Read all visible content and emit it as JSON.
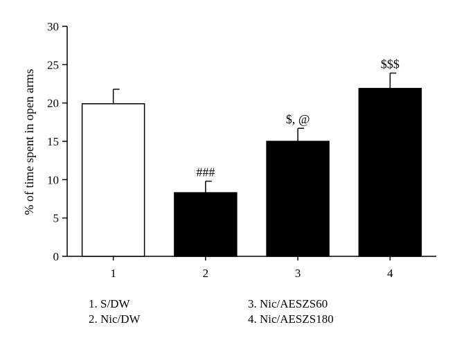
{
  "chart_data": {
    "type": "bar",
    "categories": [
      "1",
      "2",
      "3",
      "4"
    ],
    "values": [
      19.9,
      8.3,
      15.0,
      21.9
    ],
    "errors": [
      1.9,
      1.5,
      1.7,
      2.0
    ],
    "fills": [
      "#ffffff",
      "#000000",
      "#000000",
      "#000000"
    ],
    "annotations": [
      "",
      "###",
      "$, @",
      "$$$"
    ],
    "ylabel": "% of time spent in open arms",
    "xlabel": "",
    "title": "",
    "ylim": [
      0,
      30
    ],
    "yticks": [
      0,
      5,
      10,
      15,
      20,
      25,
      30
    ],
    "grid": false
  },
  "legend": {
    "items": [
      "1. S/DW",
      "2. Nic/DW",
      "3. Nic/AESZS60",
      "4. Nic/AESZS180"
    ]
  }
}
